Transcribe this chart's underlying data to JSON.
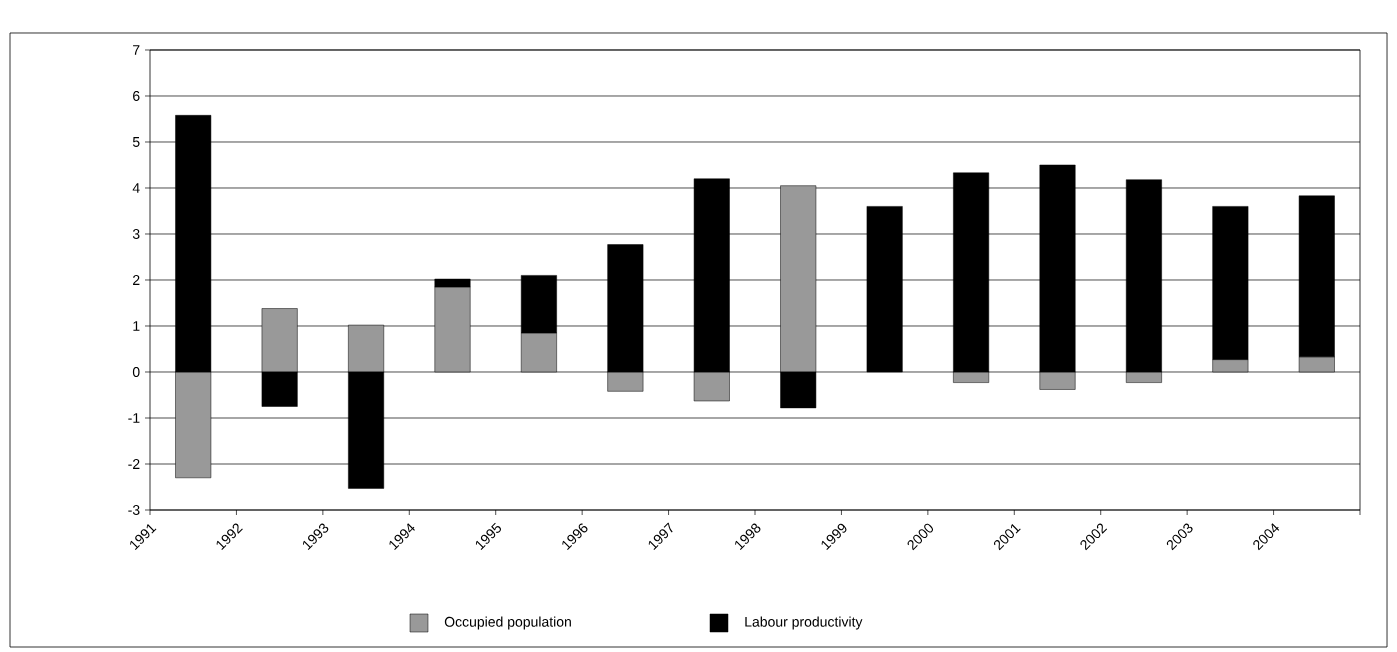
{
  "chart_data": {
    "type": "bar",
    "stacked": true,
    "categories": [
      "1991",
      "1992",
      "1993",
      "1994",
      "1995",
      "1996",
      "1997",
      "1998",
      "1999",
      "2000",
      "2001",
      "2002",
      "2003",
      "2004"
    ],
    "series": [
      {
        "name": "Occupied population",
        "color": "#999999",
        "values": [
          -2.3,
          1.38,
          1.02,
          1.85,
          0.85,
          -0.42,
          -0.63,
          4.05,
          0,
          -0.23,
          -0.38,
          -0.23,
          0.27,
          0.33
        ]
      },
      {
        "name": "Labour productivity",
        "color": "#000000",
        "values": [
          5.58,
          -0.75,
          -2.53,
          0.17,
          1.25,
          2.77,
          4.2,
          -0.78,
          3.6,
          4.33,
          4.5,
          4.18,
          3.33,
          3.5
        ]
      }
    ],
    "ylim": [
      -3,
      7
    ],
    "yticks": [
      -3,
      -2,
      -1,
      0,
      1,
      2,
      3,
      4,
      5,
      6,
      7
    ],
    "grid": "y",
    "legend": "bottom"
  }
}
